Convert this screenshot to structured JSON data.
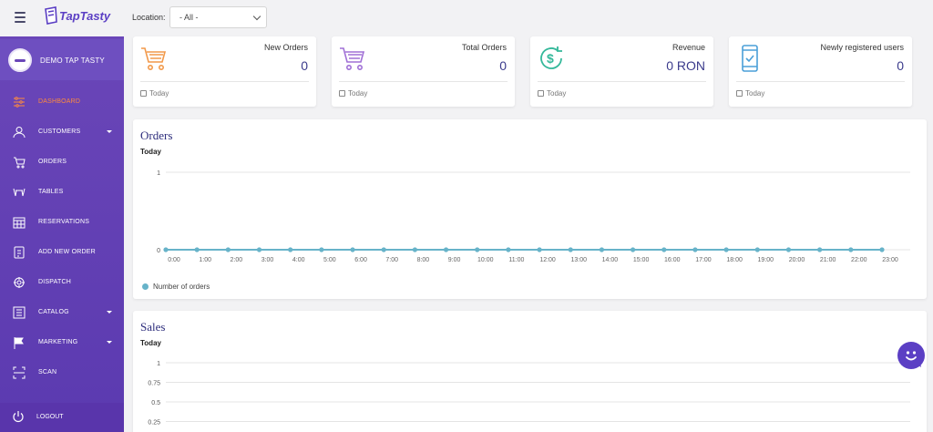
{
  "header": {
    "logo_text": "TapTasty",
    "location_label": "Location:",
    "location_value": "- All -"
  },
  "sidebar": {
    "brand": "DEMO TAP TASTY",
    "items": [
      {
        "label": "DASHBOARD",
        "icon": "sliders-icon",
        "active": true,
        "caret": false
      },
      {
        "label": "CUSTOMERS",
        "icon": "user-icon",
        "active": false,
        "caret": true
      },
      {
        "label": "ORDERS",
        "icon": "cart-icon",
        "active": false,
        "caret": false
      },
      {
        "label": "TABLES",
        "icon": "table-icon",
        "active": false,
        "caret": false
      },
      {
        "label": "RESERVATIONS",
        "icon": "calendar-grid-icon",
        "active": false,
        "caret": false
      },
      {
        "label": "ADD NEW ORDER",
        "icon": "add-order-icon",
        "active": false,
        "caret": false
      },
      {
        "label": "DISPATCH",
        "icon": "dispatch-icon",
        "active": false,
        "caret": false
      },
      {
        "label": "CATALOG",
        "icon": "catalog-icon",
        "active": false,
        "caret": true
      },
      {
        "label": "MARKETING",
        "icon": "flag-icon",
        "active": false,
        "caret": true
      },
      {
        "label": "SCAN",
        "icon": "scan-icon",
        "active": false,
        "caret": false
      }
    ],
    "logout_label": "LOGOUT"
  },
  "cards": [
    {
      "title": "New Orders",
      "value": "0",
      "footer": "Today",
      "icon": "cart-orange-icon"
    },
    {
      "title": "Total Orders",
      "value": "0",
      "footer": "Today",
      "icon": "cart-purple-icon"
    },
    {
      "title": "Revenue",
      "value": "0 RON",
      "footer": "Today",
      "icon": "dollar-cycle-icon"
    },
    {
      "title": "Newly registered users",
      "value": "0",
      "footer": "Today",
      "icon": "phone-check-icon"
    }
  ],
  "orders_panel": {
    "title": "Orders",
    "subtitle": "Today",
    "legend": "Number of orders"
  },
  "sales_panel": {
    "title": "Sales",
    "subtitle": "Today"
  },
  "chart_data": [
    {
      "type": "line",
      "title": "Orders",
      "subtitle": "Today",
      "x": [
        "0:00",
        "1:00",
        "2:00",
        "3:00",
        "4:00",
        "5:00",
        "6:00",
        "7:00",
        "8:00",
        "9:00",
        "10:00",
        "11:00",
        "12:00",
        "13:00",
        "14:00",
        "15:00",
        "16:00",
        "17:00",
        "18:00",
        "19:00",
        "20:00",
        "21:00",
        "22:00",
        "23:00"
      ],
      "y_ticks": [
        "0",
        "1"
      ],
      "series": [
        {
          "name": "Number of orders",
          "values": [
            0,
            0,
            0,
            0,
            0,
            0,
            0,
            0,
            0,
            0,
            0,
            0,
            0,
            0,
            0,
            0,
            0,
            0,
            0,
            0,
            0,
            0,
            0,
            0
          ],
          "color": "#67b3c9"
        }
      ],
      "ylim": [
        0,
        1
      ],
      "grid": true,
      "legend": "bottom-left"
    },
    {
      "type": "line",
      "title": "Sales",
      "subtitle": "Today",
      "y_ticks": [
        "1",
        "0.75",
        "0.5",
        "0.25"
      ],
      "ylim": [
        0,
        1
      ],
      "grid": true
    }
  ],
  "colors": {
    "sidebar": "#5b3ab0",
    "active": "#ff8a3d",
    "accent": "#2d2d7c",
    "series": "#67b3c9"
  }
}
